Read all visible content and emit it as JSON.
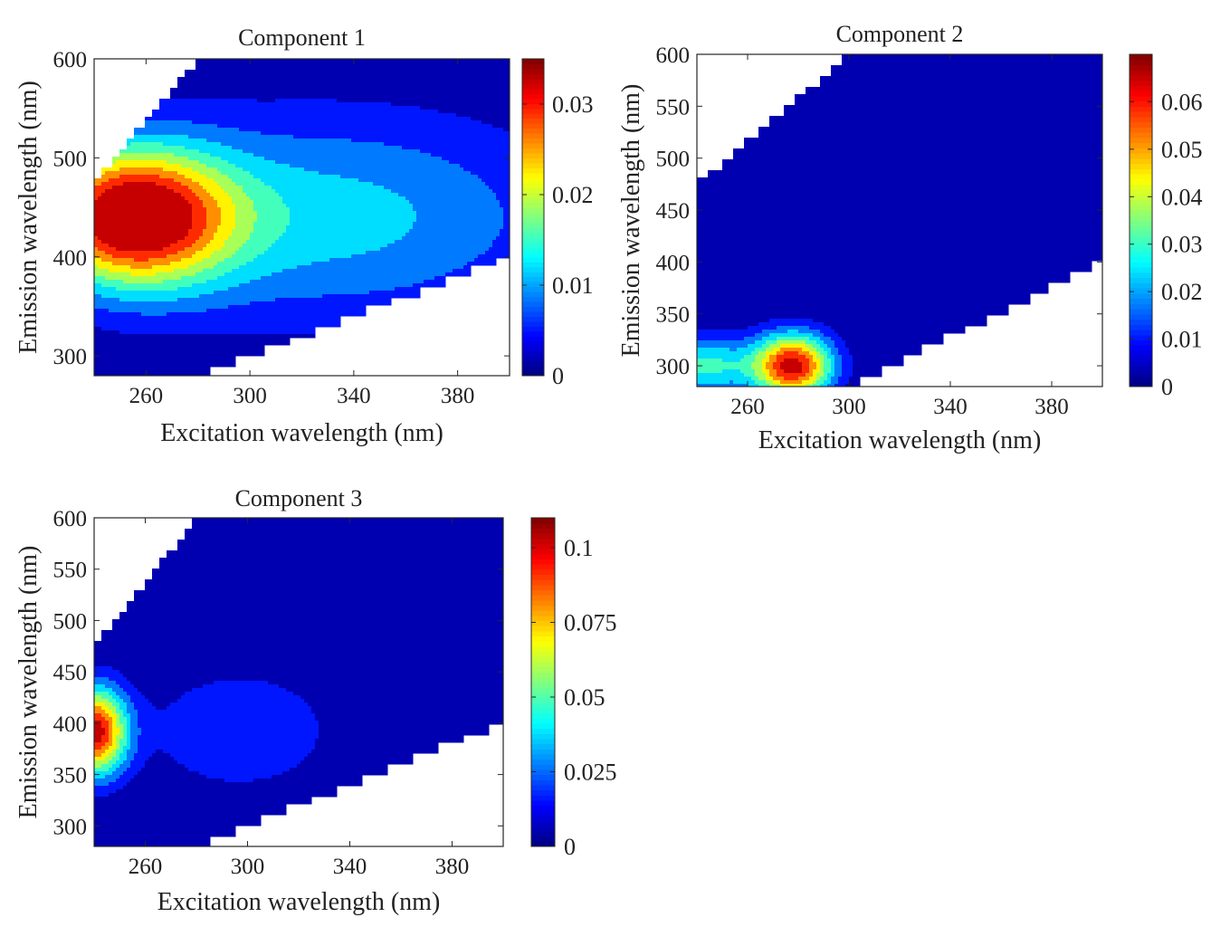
{
  "chart_data": [
    {
      "type": "contour",
      "title": "Component 1",
      "xlabel": "Excitation wavelength (nm)",
      "ylabel": "Emission wavelength (nm)",
      "xlim": [
        240,
        400
      ],
      "ylim": [
        280,
        600
      ],
      "xticks": [
        260,
        300,
        340,
        380
      ],
      "yticks": [
        300,
        400,
        500,
        600
      ],
      "colorbar": {
        "min": 0,
        "max": 0.035,
        "ticks": [
          0,
          0.01,
          0.02,
          0.03
        ],
        "tick_labels": [
          "0",
          "0.01",
          "0.02",
          "0.03"
        ],
        "colormap": "jet"
      },
      "peaks": [
        {
          "ex": 255,
          "em": 440,
          "value": 0.034,
          "sx": 26,
          "sy": 48
        },
        {
          "ex": 330,
          "em": 440,
          "value": 0.012,
          "sx": 65,
          "sy": 75
        }
      ],
      "valid_region": {
        "upper": [
          [
            240,
            475
          ],
          [
            280,
            600
          ]
        ],
        "lower": [
          [
            280,
            280
          ],
          [
            400,
            400
          ]
        ]
      }
    },
    {
      "type": "contour",
      "title": "Component 2",
      "xlabel": "Excitation wavelength (nm)",
      "ylabel": "Emission wavelength (nm)",
      "xlim": [
        240,
        400
      ],
      "ylim": [
        280,
        600
      ],
      "xticks": [
        260,
        300,
        340,
        380
      ],
      "yticks": [
        300,
        350,
        400,
        450,
        500,
        550,
        600
      ],
      "colorbar": {
        "min": 0,
        "max": 0.07,
        "ticks": [
          0,
          0.01,
          0.02,
          0.03,
          0.04,
          0.05,
          0.06
        ],
        "tick_labels": [
          "0",
          "0.01",
          "0.02",
          "0.03",
          "0.04",
          "0.05",
          "0.06"
        ],
        "colormap": "jet"
      },
      "peaks": [
        {
          "ex": 278,
          "em": 300,
          "value": 0.066,
          "sx": 11,
          "sy": 22
        },
        {
          "ex": 243,
          "em": 300,
          "value": 0.03,
          "sx": 14,
          "sy": 20
        }
      ],
      "valid_region": {
        "upper": [
          [
            240,
            475
          ],
          [
            300,
            600
          ]
        ],
        "lower": [
          [
            300,
            280
          ],
          [
            400,
            400
          ]
        ]
      }
    },
    {
      "type": "contour",
      "title": "Component 3",
      "xlabel": "Excitation wavelength (nm)",
      "ylabel": "Emission wavelength (nm)",
      "xlim": [
        240,
        400
      ],
      "ylim": [
        280,
        600
      ],
      "xticks": [
        260,
        300,
        340,
        380
      ],
      "yticks": [
        300,
        350,
        400,
        450,
        500,
        550,
        600
      ],
      "colorbar": {
        "min": 0,
        "max": 0.11,
        "ticks": [
          0,
          0.025,
          0.05,
          0.075,
          0.1
        ],
        "tick_labels": [
          "0",
          "0.025",
          "0.05",
          "0.075",
          "0.1"
        ],
        "colormap": "jet"
      },
      "peaks": [
        {
          "ex": 240,
          "em": 392,
          "value": 0.105,
          "sx": 9,
          "sy": 30
        },
        {
          "ex": 297,
          "em": 393,
          "value": 0.022,
          "sx": 26,
          "sy": 42
        }
      ],
      "valid_region": {
        "upper": [
          [
            240,
            475
          ],
          [
            280,
            600
          ]
        ],
        "lower": [
          [
            280,
            280
          ],
          [
            400,
            400
          ]
        ]
      }
    }
  ]
}
